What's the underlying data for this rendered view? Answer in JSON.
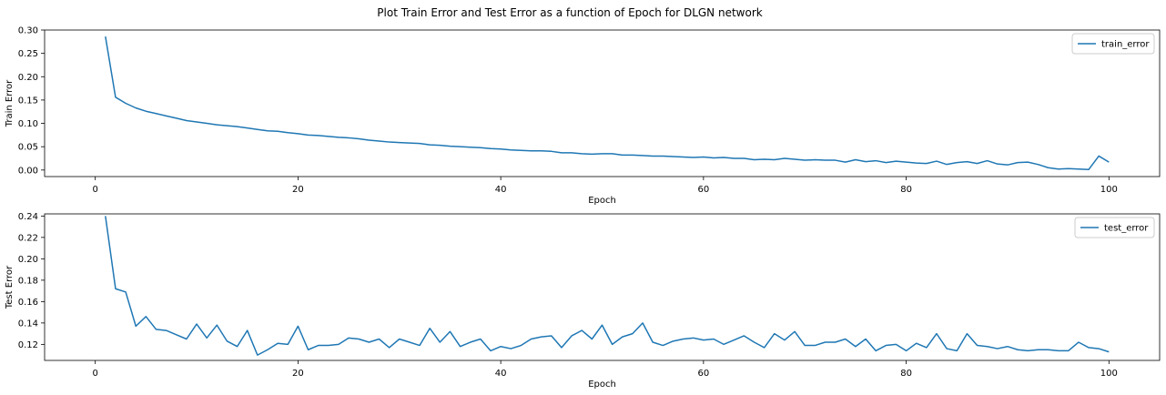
{
  "figure": {
    "title": "Plot Train Error and Test Error as a function of Epoch for DLGN network"
  },
  "colors": {
    "series": "#1f77b4",
    "axis": "#000000",
    "legend_border": "#cccccc"
  },
  "chart_data": [
    {
      "type": "line",
      "xlabel": "Epoch",
      "ylabel": "Train Error",
      "xlim": [
        -5,
        105
      ],
      "ylim": [
        -0.014,
        0.3
      ],
      "xticks": [
        0,
        20,
        40,
        60,
        80,
        100
      ],
      "yticks": [
        0.0,
        0.05,
        0.1,
        0.15,
        0.2,
        0.25,
        0.3
      ],
      "grid": false,
      "legend_position": "top-right",
      "series": [
        {
          "name": "train_error",
          "x": [
            1,
            2,
            3,
            4,
            5,
            6,
            7,
            8,
            9,
            10,
            11,
            12,
            13,
            14,
            15,
            16,
            17,
            18,
            19,
            20,
            21,
            22,
            23,
            24,
            25,
            26,
            27,
            28,
            29,
            30,
            31,
            32,
            33,
            34,
            35,
            36,
            37,
            38,
            39,
            40,
            41,
            42,
            43,
            44,
            45,
            46,
            47,
            48,
            49,
            50,
            51,
            52,
            53,
            54,
            55,
            56,
            57,
            58,
            59,
            60,
            61,
            62,
            63,
            64,
            65,
            66,
            67,
            68,
            69,
            70,
            71,
            72,
            73,
            74,
            75,
            76,
            77,
            78,
            79,
            80,
            81,
            82,
            83,
            84,
            85,
            86,
            87,
            88,
            89,
            90,
            91,
            92,
            93,
            94,
            95,
            96,
            97,
            98,
            99,
            100
          ],
          "values": [
            0.286,
            0.156,
            0.143,
            0.133,
            0.126,
            0.121,
            0.116,
            0.111,
            0.106,
            0.103,
            0.1,
            0.097,
            0.095,
            0.093,
            0.09,
            0.087,
            0.084,
            0.083,
            0.08,
            0.078,
            0.075,
            0.074,
            0.072,
            0.07,
            0.069,
            0.067,
            0.064,
            0.062,
            0.06,
            0.059,
            0.058,
            0.057,
            0.054,
            0.053,
            0.051,
            0.05,
            0.049,
            0.048,
            0.046,
            0.045,
            0.043,
            0.042,
            0.041,
            0.041,
            0.04,
            0.037,
            0.037,
            0.035,
            0.034,
            0.035,
            0.035,
            0.032,
            0.032,
            0.031,
            0.03,
            0.03,
            0.029,
            0.028,
            0.027,
            0.028,
            0.026,
            0.027,
            0.025,
            0.025,
            0.022,
            0.023,
            0.022,
            0.025,
            0.023,
            0.021,
            0.022,
            0.021,
            0.021,
            0.017,
            0.022,
            0.018,
            0.02,
            0.016,
            0.019,
            0.017,
            0.015,
            0.014,
            0.019,
            0.012,
            0.016,
            0.018,
            0.014,
            0.02,
            0.013,
            0.011,
            0.016,
            0.017,
            0.012,
            0.005,
            0.002,
            0.003,
            0.002,
            0.001,
            0.03,
            0.017
          ]
        }
      ]
    },
    {
      "type": "line",
      "xlabel": "Epoch",
      "ylabel": "Test Error",
      "xlim": [
        -5,
        105
      ],
      "ylim": [
        0.105,
        0.242
      ],
      "xticks": [
        0,
        20,
        40,
        60,
        80,
        100
      ],
      "yticks": [
        0.12,
        0.14,
        0.16,
        0.18,
        0.2,
        0.22,
        0.24
      ],
      "grid": false,
      "legend_position": "top-right",
      "series": [
        {
          "name": "test_error",
          "x": [
            1,
            2,
            3,
            4,
            5,
            6,
            7,
            8,
            9,
            10,
            11,
            12,
            13,
            14,
            15,
            16,
            17,
            18,
            19,
            20,
            21,
            22,
            23,
            24,
            25,
            26,
            27,
            28,
            29,
            30,
            31,
            32,
            33,
            34,
            35,
            36,
            37,
            38,
            39,
            40,
            41,
            42,
            43,
            44,
            45,
            46,
            47,
            48,
            49,
            50,
            51,
            52,
            53,
            54,
            55,
            56,
            57,
            58,
            59,
            60,
            61,
            62,
            63,
            64,
            65,
            66,
            67,
            68,
            69,
            70,
            71,
            72,
            73,
            74,
            75,
            76,
            77,
            78,
            79,
            80,
            81,
            82,
            83,
            84,
            85,
            86,
            87,
            88,
            89,
            90,
            91,
            92,
            93,
            94,
            95,
            96,
            97,
            98,
            99,
            100
          ],
          "values": [
            0.24,
            0.172,
            0.169,
            0.137,
            0.146,
            0.134,
            0.133,
            0.129,
            0.125,
            0.139,
            0.126,
            0.138,
            0.123,
            0.118,
            0.133,
            0.11,
            0.115,
            0.121,
            0.12,
            0.137,
            0.115,
            0.119,
            0.119,
            0.12,
            0.126,
            0.125,
            0.122,
            0.125,
            0.117,
            0.125,
            0.122,
            0.119,
            0.135,
            0.122,
            0.132,
            0.118,
            0.122,
            0.125,
            0.114,
            0.118,
            0.116,
            0.119,
            0.125,
            0.127,
            0.128,
            0.117,
            0.128,
            0.133,
            0.125,
            0.138,
            0.12,
            0.127,
            0.13,
            0.14,
            0.122,
            0.119,
            0.123,
            0.125,
            0.126,
            0.124,
            0.125,
            0.12,
            0.124,
            0.128,
            0.122,
            0.117,
            0.13,
            0.124,
            0.132,
            0.119,
            0.119,
            0.122,
            0.122,
            0.125,
            0.118,
            0.125,
            0.114,
            0.119,
            0.12,
            0.114,
            0.121,
            0.117,
            0.13,
            0.116,
            0.114,
            0.13,
            0.119,
            0.118,
            0.116,
            0.118,
            0.115,
            0.114,
            0.115,
            0.115,
            0.114,
            0.114,
            0.122,
            0.117,
            0.116,
            0.113
          ]
        }
      ]
    }
  ]
}
